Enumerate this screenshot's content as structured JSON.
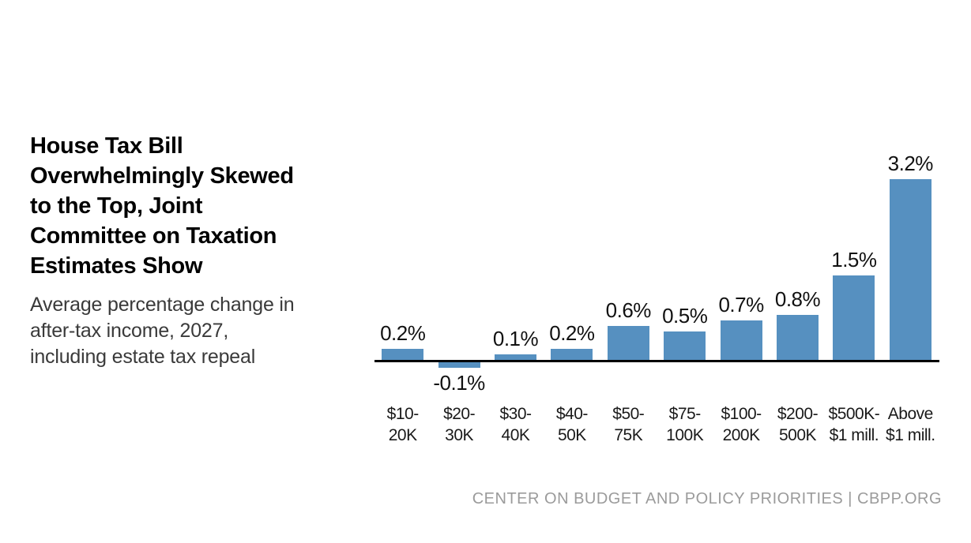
{
  "header": {
    "title_lines": [
      "House Tax Bill",
      "Overwhelmingly Skewed",
      "to the Top, Joint",
      "Committee on Taxation",
      "Estimates Show"
    ],
    "subtitle_lines": [
      "Average percentage change in",
      "after-tax income, 2027,",
      "including estate tax repeal"
    ]
  },
  "footer": {
    "credit": "CENTER ON BUDGET AND POLICY PRIORITIES | CBPP.ORG"
  },
  "colors": {
    "bar": "#5690c0",
    "axis": "#000000",
    "value_label": "#111111",
    "category_label": "#1a1a1a",
    "footer_text": "#9b9b9b"
  },
  "chart_data": {
    "type": "bar",
    "title": "House Tax Bill Overwhelmingly Skewed to the Top, Joint Committee on Taxation Estimates Show",
    "subtitle": "Average percentage change in after-tax income, 2027, including estate tax repeal",
    "categories": [
      "$10-20K",
      "$20-30K",
      "$30-40K",
      "$40-50K",
      "$50-75K",
      "$75-100K",
      "$100-200K",
      "$200-500K",
      "$500K-$1 mill.",
      "Above $1 mill."
    ],
    "category_labels_wrapped": [
      "$10-\n20K",
      "$20-\n30K",
      "$30-\n40K",
      "$40-\n50K",
      "$50-\n75K",
      "$75-\n100K",
      "$100-\n200K",
      "$200-\n500K",
      "$500K-\n$1 mill.",
      "Above\n$1 mill."
    ],
    "values": [
      0.2,
      -0.1,
      0.1,
      0.2,
      0.6,
      0.5,
      0.7,
      0.8,
      1.5,
      3.2
    ],
    "value_labels": [
      "0.2%",
      "-0.1%",
      "0.1%",
      "0.2%",
      "0.6%",
      "0.5%",
      "0.7%",
      "0.8%",
      "1.5%",
      "3.2%"
    ],
    "unit": "%",
    "xlabel": "",
    "ylabel": "",
    "ylim": [
      -0.2,
      3.5
    ],
    "grid": false,
    "legend": false,
    "baseline_at_zero": true
  }
}
